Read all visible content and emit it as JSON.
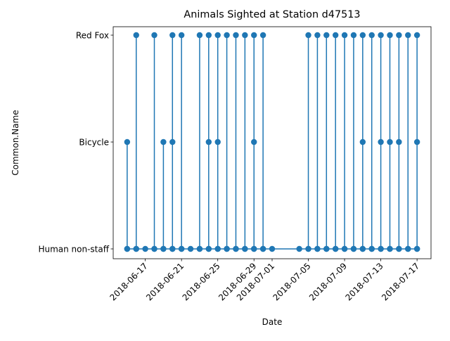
{
  "chart_data": {
    "type": "line",
    "title": "Animals Sighted at Station d47513",
    "xlabel": "Date",
    "ylabel": "Common.Name",
    "categories_y": [
      "Human non-staff",
      "Bicycle",
      "Red Fox"
    ],
    "x_ticks": [
      "2018-06-17",
      "2018-06-21",
      "2018-06-25",
      "2018-06-29",
      "2018-07-01",
      "2018-07-05",
      "2018-07-09",
      "2018-07-13",
      "2018-07-17"
    ],
    "xlim": [
      "2018-06-13 11:00",
      "2018-07-18 13:00"
    ],
    "grid": false,
    "legend": "none",
    "color": "#1f77b4",
    "series": [
      {
        "points": [
          [
            "2018-06-15 00:00",
            "Human non-staff"
          ],
          [
            "2018-06-15 00:00",
            "Bicycle"
          ],
          [
            "2018-06-15 00:00",
            "Human non-staff"
          ],
          [
            "2018-06-16 00:00",
            "Human non-staff"
          ],
          [
            "2018-06-16 00:00",
            "Red Fox"
          ],
          [
            "2018-06-16 00:00",
            "Human non-staff"
          ],
          [
            "2018-06-17 00:00",
            "Human non-staff"
          ],
          [
            "2018-06-18 00:00",
            "Human non-staff"
          ],
          [
            "2018-06-18 00:00",
            "Red Fox"
          ],
          [
            "2018-06-18 00:00",
            "Human non-staff"
          ],
          [
            "2018-06-19 00:00",
            "Human non-staff"
          ],
          [
            "2018-06-19 00:00",
            "Bicycle"
          ],
          [
            "2018-06-19 00:00",
            "Human non-staff"
          ],
          [
            "2018-06-20 00:00",
            "Human non-staff"
          ],
          [
            "2018-06-20 00:00",
            "Bicycle"
          ],
          [
            "2018-06-20 00:00",
            "Red Fox"
          ],
          [
            "2018-06-20 00:00",
            "Human non-staff"
          ],
          [
            "2018-06-21 00:00",
            "Human non-staff"
          ],
          [
            "2018-06-21 00:00",
            "Red Fox"
          ],
          [
            "2018-06-21 00:00",
            "Human non-staff"
          ],
          [
            "2018-06-22 00:00",
            "Human non-staff"
          ],
          [
            "2018-06-23 00:00",
            "Human non-staff"
          ],
          [
            "2018-06-23 00:00",
            "Red Fox"
          ],
          [
            "2018-06-23 00:00",
            "Human non-staff"
          ],
          [
            "2018-06-24 00:00",
            "Human non-staff"
          ],
          [
            "2018-06-24 00:00",
            "Bicycle"
          ],
          [
            "2018-06-24 00:00",
            "Red Fox"
          ],
          [
            "2018-06-24 00:00",
            "Human non-staff"
          ],
          [
            "2018-06-25 00:00",
            "Human non-staff"
          ],
          [
            "2018-06-25 00:00",
            "Bicycle"
          ],
          [
            "2018-06-25 00:00",
            "Red Fox"
          ],
          [
            "2018-06-25 00:00",
            "Human non-staff"
          ],
          [
            "2018-06-26 00:00",
            "Human non-staff"
          ],
          [
            "2018-06-26 00:00",
            "Red Fox"
          ],
          [
            "2018-06-26 00:00",
            "Human non-staff"
          ],
          [
            "2018-06-27 00:00",
            "Human non-staff"
          ],
          [
            "2018-06-27 00:00",
            "Red Fox"
          ],
          [
            "2018-06-27 00:00",
            "Human non-staff"
          ],
          [
            "2018-06-28 00:00",
            "Human non-staff"
          ],
          [
            "2018-06-28 00:00",
            "Red Fox"
          ],
          [
            "2018-06-28 00:00",
            "Human non-staff"
          ],
          [
            "2018-06-29 00:00",
            "Human non-staff"
          ],
          [
            "2018-06-29 00:00",
            "Red Fox"
          ],
          [
            "2018-06-29 00:00",
            "Bicycle"
          ],
          [
            "2018-06-29 00:00",
            "Human non-staff"
          ],
          [
            "2018-06-30 00:00",
            "Human non-staff"
          ],
          [
            "2018-06-30 00:00",
            "Red Fox"
          ],
          [
            "2018-06-30 00:00",
            "Human non-staff"
          ],
          [
            "2018-07-01 00:00",
            "Human non-staff"
          ],
          [
            "2018-07-04 00:00",
            "Human non-staff"
          ],
          [
            "2018-07-05 00:00",
            "Human non-staff"
          ],
          [
            "2018-07-05 00:00",
            "Red Fox"
          ],
          [
            "2018-07-05 00:00",
            "Human non-staff"
          ],
          [
            "2018-07-06 00:00",
            "Human non-staff"
          ],
          [
            "2018-07-06 00:00",
            "Red Fox"
          ],
          [
            "2018-07-06 00:00",
            "Human non-staff"
          ],
          [
            "2018-07-07 00:00",
            "Human non-staff"
          ],
          [
            "2018-07-07 00:00",
            "Red Fox"
          ],
          [
            "2018-07-07 00:00",
            "Human non-staff"
          ],
          [
            "2018-07-08 00:00",
            "Human non-staff"
          ],
          [
            "2018-07-08 00:00",
            "Red Fox"
          ],
          [
            "2018-07-08 00:00",
            "Human non-staff"
          ],
          [
            "2018-07-09 00:00",
            "Human non-staff"
          ],
          [
            "2018-07-09 00:00",
            "Red Fox"
          ],
          [
            "2018-07-09 00:00",
            "Human non-staff"
          ],
          [
            "2018-07-10 00:00",
            "Human non-staff"
          ],
          [
            "2018-07-10 00:00",
            "Red Fox"
          ],
          [
            "2018-07-10 00:00",
            "Human non-staff"
          ],
          [
            "2018-07-11 00:00",
            "Human non-staff"
          ],
          [
            "2018-07-11 00:00",
            "Red Fox"
          ],
          [
            "2018-07-11 00:00",
            "Bicycle"
          ],
          [
            "2018-07-11 00:00",
            "Human non-staff"
          ],
          [
            "2018-07-12 00:00",
            "Human non-staff"
          ],
          [
            "2018-07-12 00:00",
            "Red Fox"
          ],
          [
            "2018-07-12 00:00",
            "Human non-staff"
          ],
          [
            "2018-07-13 00:00",
            "Human non-staff"
          ],
          [
            "2018-07-13 00:00",
            "Red Fox"
          ],
          [
            "2018-07-13 00:00",
            "Bicycle"
          ],
          [
            "2018-07-13 00:00",
            "Human non-staff"
          ],
          [
            "2018-07-14 00:00",
            "Human non-staff"
          ],
          [
            "2018-07-14 00:00",
            "Red Fox"
          ],
          [
            "2018-07-14 00:00",
            "Bicycle"
          ],
          [
            "2018-07-14 00:00",
            "Human non-staff"
          ],
          [
            "2018-07-15 00:00",
            "Human non-staff"
          ],
          [
            "2018-07-15 00:00",
            "Red Fox"
          ],
          [
            "2018-07-15 00:00",
            "Bicycle"
          ],
          [
            "2018-07-15 00:00",
            "Human non-staff"
          ],
          [
            "2018-07-16 00:00",
            "Human non-staff"
          ],
          [
            "2018-07-16 00:00",
            "Red Fox"
          ],
          [
            "2018-07-16 00:00",
            "Human non-staff"
          ],
          [
            "2018-07-17 00:00",
            "Human non-staff"
          ],
          [
            "2018-07-17 00:00",
            "Red Fox"
          ],
          [
            "2018-07-17 00:00",
            "Bicycle"
          ],
          [
            "2018-07-17 00:00",
            "Human non-staff"
          ]
        ]
      }
    ]
  }
}
